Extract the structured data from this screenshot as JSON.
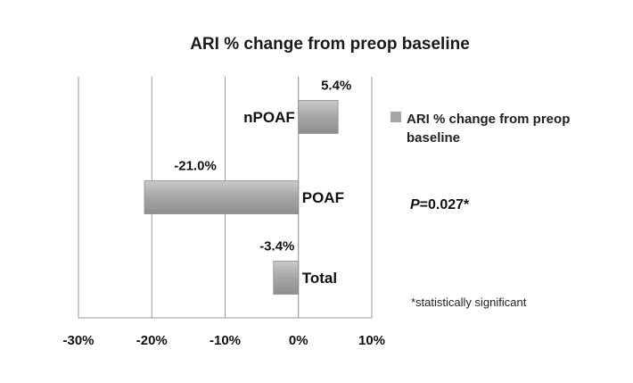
{
  "chart_data": {
    "type": "bar",
    "orientation": "horizontal",
    "title": "ARI % change from preop baseline",
    "categories": [
      "nPOAF",
      "POAF",
      "Total"
    ],
    "series": [
      {
        "name": "ARI % change from preop baseline",
        "values": [
          5.4,
          -21.0,
          -3.4
        ],
        "labels": [
          "5.4%",
          "-21.0%",
          "-3.4%"
        ]
      }
    ],
    "xlim": [
      -30,
      10
    ],
    "xticks": [
      -30,
      -20,
      -10,
      0,
      10
    ],
    "xtick_labels": [
      "-30%",
      "-20%",
      "-10%",
      "0%",
      "10%"
    ],
    "grid": true,
    "legend_position": "right",
    "bar_color": "#a6a6a6",
    "annotations": {
      "p_value_prefix": "P",
      "p_value_rest": "=0.027*",
      "note": "*statistically significant"
    }
  }
}
